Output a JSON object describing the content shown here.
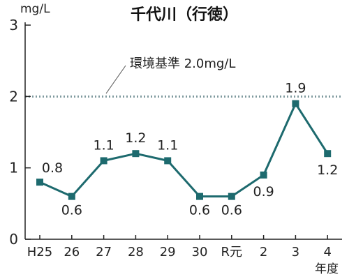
{
  "chart_data": {
    "type": "line",
    "title": "千代川（行徳）",
    "ylabel": "mg/L",
    "xlabel": "年度",
    "ylim": [
      0,
      3
    ],
    "yticks": [
      0,
      1,
      2,
      3
    ],
    "grid": false,
    "categories": [
      "H25",
      "26",
      "27",
      "28",
      "29",
      "30",
      "R元",
      "2",
      "3",
      "4"
    ],
    "series": [
      {
        "values": [
          0.8,
          0.6,
          1.1,
          1.2,
          1.1,
          0.6,
          0.6,
          0.9,
          1.9,
          1.2
        ],
        "data_labels": [
          "0.8",
          "0.6",
          "1.1",
          "1.2",
          "1.1",
          "0.6",
          "0.6",
          "0.9",
          "1.9",
          "1.2"
        ]
      }
    ],
    "reference_line": {
      "value": 2.0,
      "label": "環境基準 2.0mg/L"
    },
    "colors": {
      "series": "#1d6a6e",
      "reference": "#7f9a9e",
      "axis": "#222222",
      "text": "#222222"
    }
  }
}
